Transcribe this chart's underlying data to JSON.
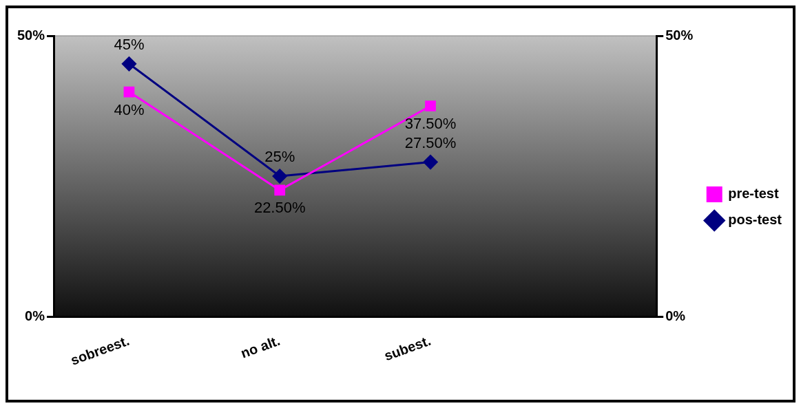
{
  "chart_data": {
    "type": "line",
    "categories": [
      "sobreest.",
      "no alt.",
      "subest.",
      null
    ],
    "series": [
      {
        "name": "pre-test",
        "color": "#ff00ff",
        "marker": "square",
        "values": [
          40,
          22.5,
          37.5,
          null
        ],
        "value_labels": [
          "40%",
          "22.50%",
          "37.50%",
          null
        ]
      },
      {
        "name": "pos-test",
        "color": "#000080",
        "marker": "diamond",
        "values": [
          45,
          25,
          27.5,
          null
        ],
        "value_labels": [
          "45%",
          "25%",
          "27.50%",
          null
        ]
      }
    ],
    "ylim": [
      0,
      50
    ],
    "yticks": [
      {
        "value": 0,
        "label": "0%"
      },
      {
        "value": 50,
        "label": "50%"
      }
    ],
    "y2lim": [
      0,
      50
    ],
    "y2ticks": [
      {
        "value": 0,
        "label": "0%"
      },
      {
        "value": 50,
        "label": "50%"
      }
    ],
    "grid": false,
    "legend": "right",
    "line_style": "solid"
  }
}
